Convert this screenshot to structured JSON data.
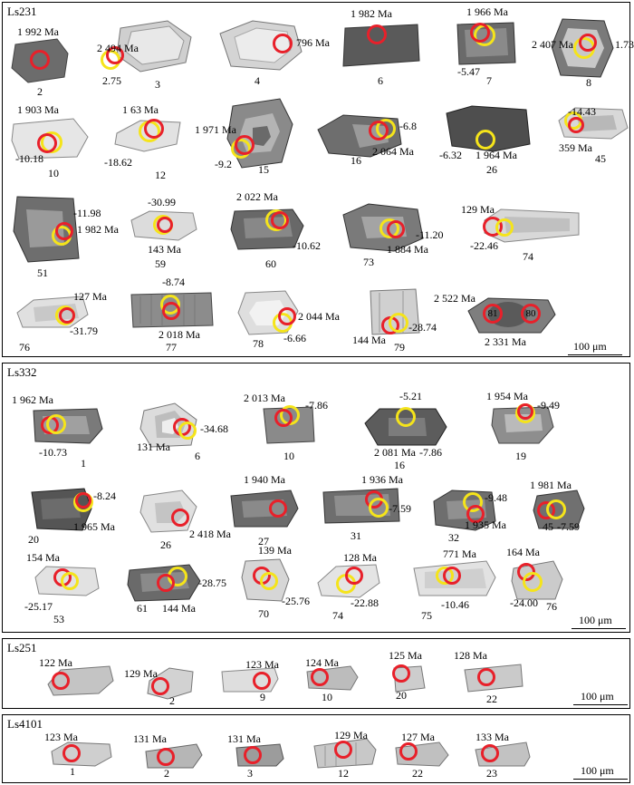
{
  "panels": [
    {
      "name": "Ls231",
      "scale": "100 μm",
      "grains": [
        {
          "num": "2",
          "age": "1 992  Ma"
        },
        {
          "num": "3",
          "age": "2 494  Ma",
          "d": "2.75"
        },
        {
          "num": "4",
          "age": "796 Ma"
        },
        {
          "num": "6",
          "age": "1 982  Ma"
        },
        {
          "num": "7",
          "age": "1 966  Ma",
          "d": "-5.47"
        },
        {
          "num": "8",
          "age": "2 407  Ma",
          "d": "1.73"
        },
        {
          "num": "10",
          "age": "1 903  Ma",
          "d": "-10.18"
        },
        {
          "num": "12",
          "age": "1 63  Ma",
          "d": "-18.62"
        },
        {
          "num": "15",
          "age": "1 971  Ma",
          "d": "-9.2"
        },
        {
          "num": "16",
          "age": "2 064  Ma",
          "d": "-6.8"
        },
        {
          "num": "26",
          "age": "1 964  Ma",
          "d": "-6.32"
        },
        {
          "num": "45",
          "age": "359  Ma",
          "d": "-14.43"
        },
        {
          "num": "51",
          "age": "1 982  Ma",
          "d": "-11.98"
        },
        {
          "num": "59",
          "age": "143  Ma",
          "d": "-30.99"
        },
        {
          "num": "60",
          "age": "2 022  Ma",
          "d": "-10.62"
        },
        {
          "num": "73",
          "age": "1 884  Ma",
          "d": "-11.20"
        },
        {
          "num": "74",
          "age": "129  Ma",
          "d": "-22.46"
        },
        {
          "num": "76",
          "age": "127  Ma",
          "d": "-31.79"
        },
        {
          "num": "77",
          "age": "2 018  Ma",
          "d": "-8.74"
        },
        {
          "num": "78",
          "age": "2 044  Ma",
          "d": "-6.66"
        },
        {
          "num": "79",
          "age": "144  Ma",
          "d": "-28.74"
        },
        {
          "num": "",
          "age": "2 522  Ma",
          "age2": "2 331  Ma",
          "spot1": "81",
          "spot2": "80"
        }
      ]
    },
    {
      "name": "Ls332",
      "scale": "100 μm",
      "grains": [
        {
          "num": "1",
          "age": "1 962  Ma",
          "d": "-10.73"
        },
        {
          "num": "6",
          "age": "131  Ma",
          "d": "-34.68"
        },
        {
          "num": "10",
          "age": "2 013  Ma",
          "d": "-7.86"
        },
        {
          "num": "16",
          "age": "2 081  Ma",
          "d": "-5.21",
          "d2": "-7.86"
        },
        {
          "num": "19",
          "age": "1 954  Ma",
          "d": "-9.49"
        },
        {
          "num": "20",
          "age": "1 965  Ma",
          "d": "-8.24"
        },
        {
          "num": "26",
          "age": "2 418  Ma"
        },
        {
          "num": "27",
          "age": "1 940  Ma"
        },
        {
          "num": "31",
          "age": "1 936  Ma",
          "d": "-7.59"
        },
        {
          "num": "32",
          "age": "1 935  Ma",
          "d": "-9.48"
        },
        {
          "num": "45",
          "age": "1 981  Ma",
          "d": "-7.59"
        },
        {
          "num": "53",
          "age": "154  Ma",
          "d": "-25.17"
        },
        {
          "num": "61",
          "age": "144  Ma",
          "d": "-28.75"
        },
        {
          "num": "70",
          "age": "139  Ma",
          "d": "-25.76"
        },
        {
          "num": "74",
          "age": "128  Ma",
          "d": "-22.88"
        },
        {
          "num": "75",
          "age": "771  Ma",
          "d": "-10.46"
        },
        {
          "num": "76",
          "age": "164  Ma",
          "d": "-24.00"
        }
      ]
    },
    {
      "name": "Ls251",
      "scale": "100 μm",
      "grains": [
        {
          "num": "",
          "age": "122  Ma"
        },
        {
          "num": "2",
          "age": "129  Ma"
        },
        {
          "num": "9",
          "age": "123  Ma"
        },
        {
          "num": "10",
          "age": "124  Ma"
        },
        {
          "num": "20",
          "age": "125  Ma"
        },
        {
          "num": "22",
          "age": "128  Ma"
        }
      ]
    },
    {
      "name": "Ls4101",
      "scale": "100 μm",
      "grains": [
        {
          "num": "1",
          "age": "123  Ma"
        },
        {
          "num": "2",
          "age": "131  Ma"
        },
        {
          "num": "3",
          "age": "131  Ma"
        },
        {
          "num": "12",
          "age": "129  Ma"
        },
        {
          "num": "22",
          "age": "127  Ma"
        },
        {
          "num": "23",
          "age": "133  Ma"
        }
      ]
    }
  ]
}
